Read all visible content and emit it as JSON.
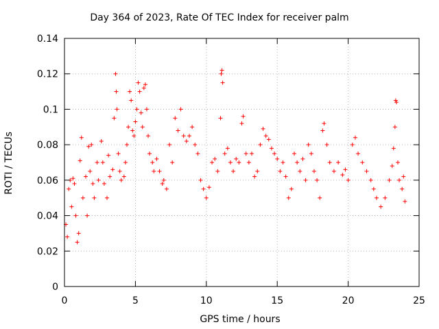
{
  "chart_data": {
    "type": "scatter",
    "title": "Day 364 of 2023, Rate Of TEC Index for receiver palm",
    "xlabel": "GPS time / hours",
    "ylabel": "ROTI / TECUs",
    "xlim": [
      0,
      25
    ],
    "ylim": [
      0,
      0.14
    ],
    "xticks": [
      0,
      5,
      10,
      15,
      20,
      25
    ],
    "xtick_labels": [
      "0",
      "5",
      "10",
      "15",
      "20",
      "25"
    ],
    "yticks": [
      0,
      0.02,
      0.04,
      0.06,
      0.08,
      0.1,
      0.12,
      0.14
    ],
    "ytick_labels": [
      "0",
      "0.02",
      "0.04",
      "0.06",
      "0.08",
      "0.1",
      "0.12",
      "0.14"
    ],
    "grid": true,
    "marker": "+",
    "marker_color": "#ff0000",
    "series": [
      {
        "name": "ROTI",
        "points": [
          [
            0.1,
            0.035
          ],
          [
            0.2,
            0.028
          ],
          [
            0.3,
            0.055
          ],
          [
            0.4,
            0.06
          ],
          [
            0.5,
            0.045
          ],
          [
            0.6,
            0.061
          ],
          [
            0.7,
            0.058
          ],
          [
            0.8,
            0.04
          ],
          [
            0.9,
            0.025
          ],
          [
            1.0,
            0.03
          ],
          [
            1.1,
            0.071
          ],
          [
            1.2,
            0.084
          ],
          [
            1.3,
            0.05
          ],
          [
            1.5,
            0.062
          ],
          [
            1.6,
            0.04
          ],
          [
            1.7,
            0.079
          ],
          [
            1.8,
            0.065
          ],
          [
            1.9,
            0.08
          ],
          [
            2.0,
            0.058
          ],
          [
            2.1,
            0.05
          ],
          [
            2.3,
            0.07
          ],
          [
            2.4,
            0.06
          ],
          [
            2.6,
            0.082
          ],
          [
            2.7,
            0.07
          ],
          [
            2.8,
            0.058
          ],
          [
            3.0,
            0.05
          ],
          [
            3.1,
            0.074
          ],
          [
            3.2,
            0.062
          ],
          [
            3.4,
            0.066
          ],
          [
            3.5,
            0.095
          ],
          [
            3.6,
            0.12
          ],
          [
            3.65,
            0.11
          ],
          [
            3.7,
            0.1
          ],
          [
            3.8,
            0.075
          ],
          [
            3.9,
            0.065
          ],
          [
            4.0,
            0.06
          ],
          [
            4.2,
            0.062
          ],
          [
            4.3,
            0.07
          ],
          [
            4.4,
            0.08
          ],
          [
            4.5,
            0.09
          ],
          [
            4.6,
            0.11
          ],
          [
            4.7,
            0.105
          ],
          [
            4.8,
            0.088
          ],
          [
            4.9,
            0.085
          ],
          [
            5.0,
            0.093
          ],
          [
            5.1,
            0.1
          ],
          [
            5.2,
            0.115
          ],
          [
            5.3,
            0.11
          ],
          [
            5.4,
            0.098
          ],
          [
            5.5,
            0.09
          ],
          [
            5.6,
            0.112
          ],
          [
            5.7,
            0.114
          ],
          [
            5.8,
            0.1
          ],
          [
            5.9,
            0.085
          ],
          [
            6.0,
            0.075
          ],
          [
            6.2,
            0.07
          ],
          [
            6.3,
            0.065
          ],
          [
            6.5,
            0.072
          ],
          [
            6.7,
            0.065
          ],
          [
            6.9,
            0.058
          ],
          [
            7.0,
            0.06
          ],
          [
            7.2,
            0.055
          ],
          [
            7.4,
            0.08
          ],
          [
            7.6,
            0.07
          ],
          [
            7.8,
            0.095
          ],
          [
            8.0,
            0.088
          ],
          [
            8.2,
            0.1
          ],
          [
            8.4,
            0.085
          ],
          [
            8.6,
            0.082
          ],
          [
            8.8,
            0.085
          ],
          [
            9.0,
            0.09
          ],
          [
            9.2,
            0.08
          ],
          [
            9.4,
            0.075
          ],
          [
            9.6,
            0.06
          ],
          [
            9.8,
            0.055
          ],
          [
            10.0,
            0.05
          ],
          [
            10.2,
            0.056
          ],
          [
            10.4,
            0.07
          ],
          [
            10.6,
            0.072
          ],
          [
            10.8,
            0.065
          ],
          [
            11.0,
            0.095
          ],
          [
            11.05,
            0.12
          ],
          [
            11.1,
            0.122
          ],
          [
            11.15,
            0.115
          ],
          [
            11.3,
            0.075
          ],
          [
            11.5,
            0.078
          ],
          [
            11.7,
            0.07
          ],
          [
            11.9,
            0.065
          ],
          [
            12.1,
            0.072
          ],
          [
            12.3,
            0.07
          ],
          [
            12.5,
            0.092
          ],
          [
            12.6,
            0.096
          ],
          [
            12.8,
            0.075
          ],
          [
            13.0,
            0.07
          ],
          [
            13.2,
            0.075
          ],
          [
            13.4,
            0.062
          ],
          [
            13.6,
            0.065
          ],
          [
            13.8,
            0.08
          ],
          [
            14.0,
            0.089
          ],
          [
            14.2,
            0.085
          ],
          [
            14.4,
            0.083
          ],
          [
            14.6,
            0.078
          ],
          [
            14.8,
            0.075
          ],
          [
            15.0,
            0.072
          ],
          [
            15.2,
            0.065
          ],
          [
            15.4,
            0.07
          ],
          [
            15.6,
            0.062
          ],
          [
            15.8,
            0.05
          ],
          [
            16.0,
            0.055
          ],
          [
            16.2,
            0.075
          ],
          [
            16.4,
            0.07
          ],
          [
            16.6,
            0.065
          ],
          [
            16.8,
            0.072
          ],
          [
            17.0,
            0.06
          ],
          [
            17.2,
            0.08
          ],
          [
            17.4,
            0.075
          ],
          [
            17.6,
            0.065
          ],
          [
            17.8,
            0.06
          ],
          [
            18.0,
            0.05
          ],
          [
            18.2,
            0.088
          ],
          [
            18.3,
            0.092
          ],
          [
            18.5,
            0.08
          ],
          [
            18.7,
            0.07
          ],
          [
            19.0,
            0.065
          ],
          [
            19.3,
            0.07
          ],
          [
            19.6,
            0.063
          ],
          [
            19.8,
            0.066
          ],
          [
            20.0,
            0.06
          ],
          [
            20.3,
            0.08
          ],
          [
            20.5,
            0.084
          ],
          [
            20.7,
            0.075
          ],
          [
            21.0,
            0.07
          ],
          [
            21.3,
            0.065
          ],
          [
            21.6,
            0.06
          ],
          [
            21.8,
            0.055
          ],
          [
            22.0,
            0.05
          ],
          [
            22.3,
            0.045
          ],
          [
            22.6,
            0.05
          ],
          [
            22.9,
            0.06
          ],
          [
            23.1,
            0.068
          ],
          [
            23.2,
            0.078
          ],
          [
            23.3,
            0.09
          ],
          [
            23.35,
            0.105
          ],
          [
            23.4,
            0.104
          ],
          [
            23.5,
            0.07
          ],
          [
            23.6,
            0.06
          ],
          [
            23.8,
            0.055
          ],
          [
            23.9,
            0.062
          ],
          [
            24.0,
            0.048
          ]
        ]
      }
    ]
  }
}
